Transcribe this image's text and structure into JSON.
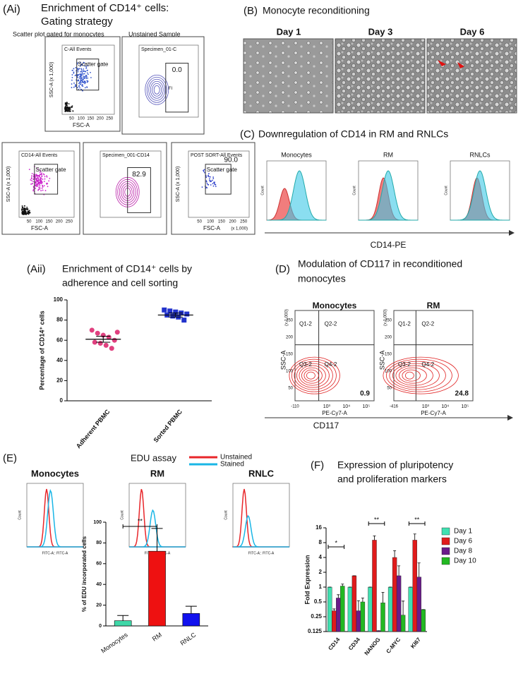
{
  "ai": {
    "label": "(Ai)",
    "title": [
      "Enrichment of CD14⁺ cells:",
      "Gating strategy"
    ],
    "captions": [
      "Scatter plot gated for monocytes",
      "Unstained Sample"
    ],
    "plots": [
      {
        "header": "C-All Events",
        "gate": "Scatter gate",
        "x_label": "FSC-A",
        "y_label": "SSC-A (x 1,000)"
      },
      {
        "header": "Specimen_01-C",
        "gate_value": "0.0",
        "gate": "FI"
      },
      {
        "header": "CD14-All Events",
        "gate": "Scatter gate",
        "x_label": "FSC-A",
        "y_label": "SSC-A (x 1,000)"
      },
      {
        "header": "Specimen_001-CD14",
        "gate_value": "82.9"
      },
      {
        "header": "POST SORT-All Events",
        "gate": "Scatter gate",
        "gate_value": "90.0",
        "x_label": "FSC-A",
        "y_label": "SSC-A (x 1,000)",
        "x_unit": "(x 1,000)"
      }
    ],
    "x_ticks": [
      "50",
      "100",
      "150",
      "200",
      "250"
    ]
  },
  "b": {
    "label": "(B)",
    "title": "Monocyte reconditioning",
    "days": [
      "Day 1",
      "Day 3",
      "Day 6"
    ]
  },
  "c": {
    "label": "(C)",
    "title": "Downregulation of CD14 in RM and RNLCs",
    "plots": [
      "Monocytes",
      "RM",
      "RNLCs"
    ],
    "y_label": "Count",
    "x_label": "CD14-PE"
  },
  "aii": {
    "label": "(Aii)",
    "title": [
      "Enrichment of CD14⁺ cells by",
      "adherence and cell sorting"
    ]
  },
  "d": {
    "label": "(D)",
    "title": [
      "Modulation of CD117 in reconditioned",
      "monocytes"
    ],
    "plots": [
      {
        "title": "Monocytes",
        "value": "0.9",
        "x_min": "-110"
      },
      {
        "title": "RM",
        "value": "24.8",
        "x_min": "-416"
      }
    ],
    "quadrants": [
      "Q1-2",
      "Q2-2",
      "Q3-2",
      "Q4-2"
    ],
    "y_label": "SSC-A",
    "y_unit": "(x 1,000)",
    "x_label": "PE-Cy7-A",
    "y_ticks": [
      "250",
      "200",
      "150",
      "100",
      "50"
    ],
    "x_ticks": [
      "10³",
      "10⁴",
      "10⁵"
    ],
    "axis_label": "CD117"
  },
  "e": {
    "label": "(E)",
    "title": "EDU assay",
    "legend": [
      {
        "name": "Unstained",
        "color": "#e8262a"
      },
      {
        "name": "Stained",
        "color": "#1ab6e6"
      }
    ],
    "plots": [
      "Monocytes",
      "RM",
      "RNLC"
    ],
    "y_label": "Count",
    "x_label": "FITC-A:: FITC-A"
  },
  "f": {
    "label": "(F)",
    "title": [
      "Expression of pluripotency",
      "and proliferation markers"
    ]
  },
  "chart_data": [
    {
      "type": "strip",
      "categories": [
        "Adherent PBMC",
        "Sorted PBMC"
      ],
      "y_label": "Percentage of CD14⁺ cells",
      "ylim": [
        0,
        100
      ],
      "yticks": [
        0,
        20,
        40,
        60,
        80,
        100
      ],
      "series": [
        {
          "color": "#e0407f",
          "values": [
            70,
            67,
            65,
            63,
            60,
            58,
            57,
            55,
            52,
            68
          ],
          "mean": 61,
          "error": 3
        },
        {
          "color": "#2233cc",
          "values": [
            90,
            89,
            88,
            87,
            86,
            85,
            84,
            83,
            80
          ],
          "mean": 85,
          "error": 2
        }
      ]
    },
    {
      "type": "bar",
      "categories": [
        "Monocytes",
        "RM",
        "RNLC"
      ],
      "values": [
        5,
        72,
        12
      ],
      "errors": [
        5,
        22,
        7
      ],
      "colors": [
        "#3fd8a8",
        "#ee1111",
        "#1111ee"
      ],
      "y_label": "% of EDU incorporated cells",
      "ylim": [
        0,
        100
      ],
      "yticks": [
        0,
        20,
        40,
        60,
        80,
        100
      ],
      "significance": "**"
    },
    {
      "type": "grouped_bar",
      "log_scale": true,
      "y_label": "Fold Expression",
      "ylim": [
        0.125,
        16
      ],
      "yticks": [
        0.125,
        0.25,
        0.5,
        1,
        2,
        4,
        8,
        16
      ],
      "categories": [
        "CD14",
        "CD34",
        "NANOG",
        "C-MYC",
        "KI67"
      ],
      "legend": "right",
      "series": [
        {
          "name": "Day 1",
          "color": "#40e0b0",
          "values": [
            1,
            1,
            1,
            1,
            1
          ],
          "errors": [
            0,
            0,
            0,
            0,
            0
          ]
        },
        {
          "name": "Day 6",
          "color": "#e01b1b",
          "values": [
            0.33,
            1.7,
            9,
            4,
            9
          ],
          "errors": [
            0.03,
            0,
            2,
            1.5,
            3
          ]
        },
        {
          "name": "Day 8",
          "color": "#6a1b8a",
          "values": [
            0.6,
            0.33,
            0.13,
            1.7,
            1.6
          ],
          "errors": [
            0.1,
            0.2,
            0,
            1,
            1.5
          ]
        },
        {
          "name": "Day 10",
          "color": "#22b822",
          "values": [
            1.05,
            0.5,
            0.48,
            0.27,
            0.35
          ],
          "errors": [
            0.1,
            0.1,
            0.3,
            0.25,
            0
          ]
        }
      ],
      "significance": [
        "*",
        "**",
        "**"
      ]
    }
  ]
}
